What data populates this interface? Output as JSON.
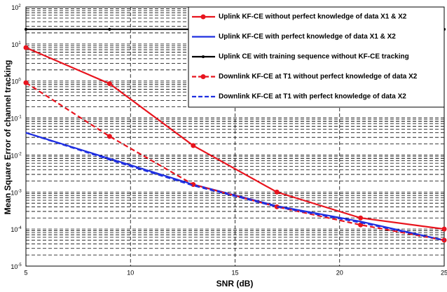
{
  "chart_data": {
    "type": "line",
    "xlabel": "SNR (dB)",
    "ylabel": "Mean Square Error of channel tracking",
    "x": [
      5,
      9,
      13,
      17,
      21,
      25
    ],
    "xlim": [
      5,
      25
    ],
    "xticks": [
      5,
      10,
      15,
      20,
      25
    ],
    "ylim": [
      1e-05,
      100
    ],
    "yscale": "log",
    "yticks": [
      {
        "value": 1e-05,
        "label": "10",
        "sup": "-5"
      },
      {
        "value": 0.0001,
        "label": "10",
        "sup": "-4"
      },
      {
        "value": 0.001,
        "label": "10",
        "sup": "-3"
      },
      {
        "value": 0.01,
        "label": "10",
        "sup": "-2"
      },
      {
        "value": 0.1,
        "label": "10",
        "sup": "-1"
      },
      {
        "value": 1,
        "label": "10",
        "sup": "0"
      },
      {
        "value": 10,
        "label": "10",
        "sup": "1"
      },
      {
        "value": 100,
        "label": "10",
        "sup": "2"
      }
    ],
    "grid": true,
    "legend": "upper right",
    "series": [
      {
        "name": "Uplink KF-CE without perfect knowledge of data X1 & X2",
        "color": "#e8141e",
        "dash": false,
        "marker": true,
        "values": [
          8,
          0.85,
          0.018,
          0.001,
          0.0002,
          0.0001
        ]
      },
      {
        "name": "Uplink KF-CE with perfect knowledge of data X1 & X2",
        "color": "#1f2fe0",
        "dash": false,
        "marker": false,
        "values": [
          0.04,
          0.008,
          0.0016,
          0.00042,
          0.00016,
          5e-05
        ]
      },
      {
        "name": "Uplink CE with training sequence without KF-CE tracking",
        "color": "#000000",
        "dash": false,
        "marker": true,
        "values": [
          25,
          25,
          25,
          25,
          25,
          25
        ]
      },
      {
        "name": "Downlink KF-CE at T1 without perfect knowledge of data X2",
        "color": "#e8141e",
        "dash": true,
        "marker": true,
        "values": [
          0.9,
          0.032,
          0.0016,
          0.0004,
          0.00013,
          5e-05
        ]
      },
      {
        "name": "Downlink KF-CE at T1 with perfect knowledge of data X2",
        "color": "#1f2fe0",
        "dash": true,
        "marker": false,
        "values": [
          0.04,
          0.0075,
          0.0015,
          0.0004,
          0.00015,
          5e-05
        ]
      }
    ]
  }
}
